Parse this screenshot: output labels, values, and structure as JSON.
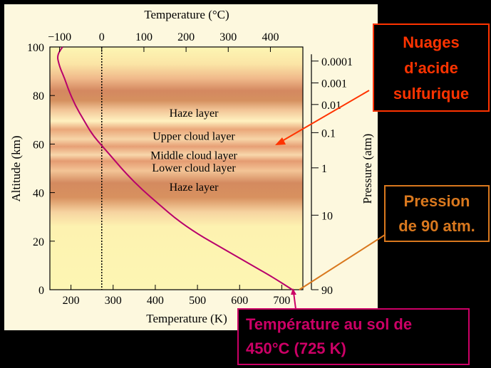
{
  "chart_data": {
    "type": "line",
    "title": "",
    "xlabel_bottom": "Temperature (K)",
    "xlabel_top": "Temperature (°C)",
    "ylabel_left": "Altitude (km)",
    "ylabel_right": "Pressure (atm)",
    "xlim_k": [
      150,
      750
    ],
    "ylim_km": [
      0,
      100
    ],
    "x_ticks_k": [
      200,
      300,
      400,
      500,
      600,
      700
    ],
    "x_ticks_c": [
      -100,
      0,
      100,
      200,
      300,
      400
    ],
    "y_ticks_km": [
      0,
      20,
      40,
      60,
      80,
      100
    ],
    "pressure_ticks": [
      {
        "label": "0.0001",
        "altitude_km": 94.2
      },
      {
        "label": "0.001",
        "altitude_km": 85.2
      },
      {
        "label": "0.01",
        "altitude_km": 76.3
      },
      {
        "label": "0.1",
        "altitude_km": 64.7
      },
      {
        "label": "1",
        "altitude_km": 50.2
      },
      {
        "label": "10",
        "altitude_km": 30.7
      },
      {
        "label": "90",
        "altitude_km": 0
      }
    ],
    "freezing_line_k": 273,
    "layers": [
      {
        "name": "Haze layer",
        "label_altitude_km": 73,
        "altitude_km": [
          70,
          90
        ]
      },
      {
        "name": "Upper cloud layer",
        "label_altitude_km": 63.5,
        "altitude_km": [
          58,
          70
        ]
      },
      {
        "name": "Middle cloud layer",
        "label_altitude_km": 55.5,
        "altitude_km": [
          52,
          58
        ]
      },
      {
        "name": "Lower cloud layer",
        "label_altitude_km": 50.5,
        "altitude_km": [
          48,
          52
        ]
      },
      {
        "name": "Haze layer",
        "label_altitude_km": 42.5,
        "altitude_km": [
          30,
          48
        ]
      }
    ],
    "series": [
      {
        "x": [
          725,
          680,
          620,
          560,
          500,
          450,
          410,
          370,
          330,
          305,
          280,
          250,
          230,
          210,
          195,
          185,
          175,
          170,
          168,
          172,
          180
        ],
        "y": [
          0,
          5,
          11,
          17,
          23,
          29,
          35,
          41,
          48,
          53,
          58,
          64,
          70,
          76,
          82,
          87,
          91,
          94,
          96,
          98,
          100
        ]
      }
    ]
  },
  "callouts": {
    "clouds": {
      "lines": [
        "Nuages",
        "d’acide",
        "sulfurique"
      ],
      "color": "#ff3300"
    },
    "pressure": {
      "lines": [
        "Pression",
        "de 90 atm."
      ],
      "color": "#d9781e"
    },
    "temperature": {
      "lines": [
        "Température au sol de",
        "450°C (725 K)"
      ],
      "color": "#cc0066"
    }
  }
}
